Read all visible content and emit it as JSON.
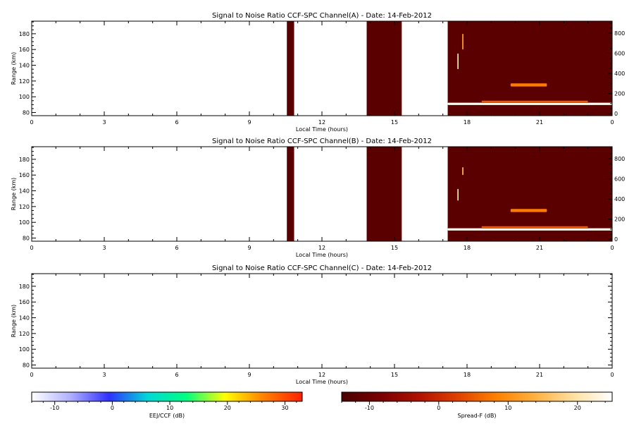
{
  "chart_data": [
    {
      "type": "heatmap",
      "title": "Signal to Noise Ratio CCF-SPC Channel(A) - Date: 14-Feb-2012",
      "xlabel": "Local Time (hours)",
      "ylabel": "Range (km)",
      "xlim": [
        0,
        24
      ],
      "ylim": [
        76,
        196
      ],
      "x_ticks": [
        "0",
        "3",
        "6",
        "9",
        "12",
        "15",
        "18",
        "21",
        "0"
      ],
      "y_ticks": [
        "80",
        "100",
        "120",
        "140",
        "160",
        "180"
      ],
      "y2lim": [
        -20,
        920
      ],
      "y2_ticks": [
        "0",
        "200",
        "400",
        "600",
        "800"
      ],
      "colormap": "Spread-F",
      "background_db": -12,
      "data_blocks": [
        {
          "x_start": 10.55,
          "x_end": 10.85,
          "range_start": 76,
          "range_end": 196,
          "snr_db": -12
        },
        {
          "x_start": 13.85,
          "x_end": 15.3,
          "range_start": 76,
          "range_end": 196,
          "snr_db": -12
        },
        {
          "x_start": 17.2,
          "x_end": 24.0,
          "range_start": 76,
          "range_end": 196,
          "snr_db": -12
        }
      ],
      "echoes": [
        {
          "x_start": 17.2,
          "x_end": 24.0,
          "range": 91,
          "thickness_km": 3,
          "snr_db": 24
        },
        {
          "x_start": 18.6,
          "x_end": 23.0,
          "range": 94,
          "thickness_km": 2,
          "snr_db": 5
        },
        {
          "x_start": 19.8,
          "x_end": 21.3,
          "range": 115,
          "thickness_km": 4,
          "snr_db": 8
        },
        {
          "x_start": 17.6,
          "x_end": 17.65,
          "range": 145,
          "thickness_km": 20,
          "snr_db": 20
        },
        {
          "x_start": 17.8,
          "x_end": 17.85,
          "range": 170,
          "thickness_km": 20,
          "snr_db": 12
        }
      ]
    },
    {
      "type": "heatmap",
      "title": "Signal to Noise Ratio CCF-SPC Channel(B) - Date: 14-Feb-2012",
      "xlabel": "Local Time (hours)",
      "ylabel": "Range (km)",
      "xlim": [
        0,
        24
      ],
      "ylim": [
        76,
        196
      ],
      "x_ticks": [
        "0",
        "3",
        "6",
        "9",
        "12",
        "15",
        "18",
        "21",
        "0"
      ],
      "y_ticks": [
        "80",
        "100",
        "120",
        "140",
        "160",
        "180"
      ],
      "y2lim": [
        -20,
        920
      ],
      "y2_ticks": [
        "0",
        "200",
        "400",
        "600",
        "800"
      ],
      "colormap": "Spread-F",
      "background_db": -12,
      "data_blocks": [
        {
          "x_start": 10.55,
          "x_end": 10.85,
          "range_start": 76,
          "range_end": 196,
          "snr_db": -12
        },
        {
          "x_start": 13.85,
          "x_end": 15.3,
          "range_start": 76,
          "range_end": 196,
          "snr_db": -12
        },
        {
          "x_start": 17.2,
          "x_end": 24.0,
          "range_start": 76,
          "range_end": 196,
          "snr_db": -12
        }
      ],
      "echoes": [
        {
          "x_start": 17.2,
          "x_end": 24.0,
          "range": 91,
          "thickness_km": 3,
          "snr_db": 24
        },
        {
          "x_start": 18.6,
          "x_end": 23.0,
          "range": 94,
          "thickness_km": 2,
          "snr_db": 5
        },
        {
          "x_start": 19.8,
          "x_end": 21.3,
          "range": 115,
          "thickness_km": 4,
          "snr_db": 8
        },
        {
          "x_start": 17.6,
          "x_end": 17.65,
          "range": 135,
          "thickness_km": 15,
          "snr_db": 20
        },
        {
          "x_start": 17.8,
          "x_end": 17.85,
          "range": 165,
          "thickness_km": 10,
          "snr_db": 15
        }
      ]
    },
    {
      "type": "heatmap",
      "title": "Signal to Noise Ratio CCF-SPC Channel(C) - Date: 14-Feb-2012",
      "xlabel": "Local Time (hours)",
      "ylabel": "Range (km)",
      "xlim": [
        0,
        24
      ],
      "ylim": [
        76,
        196
      ],
      "x_ticks": [
        "0",
        "3",
        "6",
        "9",
        "12",
        "15",
        "18",
        "21",
        "0"
      ],
      "y_ticks": [
        "80",
        "100",
        "120",
        "140",
        "160",
        "180"
      ],
      "data_blocks": [],
      "echoes": []
    }
  ],
  "colorbars": [
    {
      "label": "EEJ/CCF (dB)",
      "range": [
        -14,
        33
      ],
      "ticks": [
        "-10",
        "0",
        "10",
        "20",
        "30"
      ],
      "colors": [
        "#ffffff",
        "#b0b0ff",
        "#3030ff",
        "#00d8d8",
        "#00ff80",
        "#ffff00",
        "#ff8000",
        "#ff2000"
      ]
    },
    {
      "label": "Spread-F (dB)",
      "range": [
        -14,
        25
      ],
      "ticks": [
        "-10",
        "0",
        "10",
        "20"
      ],
      "colors": [
        "#4a0000",
        "#7a0000",
        "#b01000",
        "#e04000",
        "#ff8000",
        "#ffb040",
        "#ffe0a0",
        "#ffffff"
      ]
    }
  ]
}
